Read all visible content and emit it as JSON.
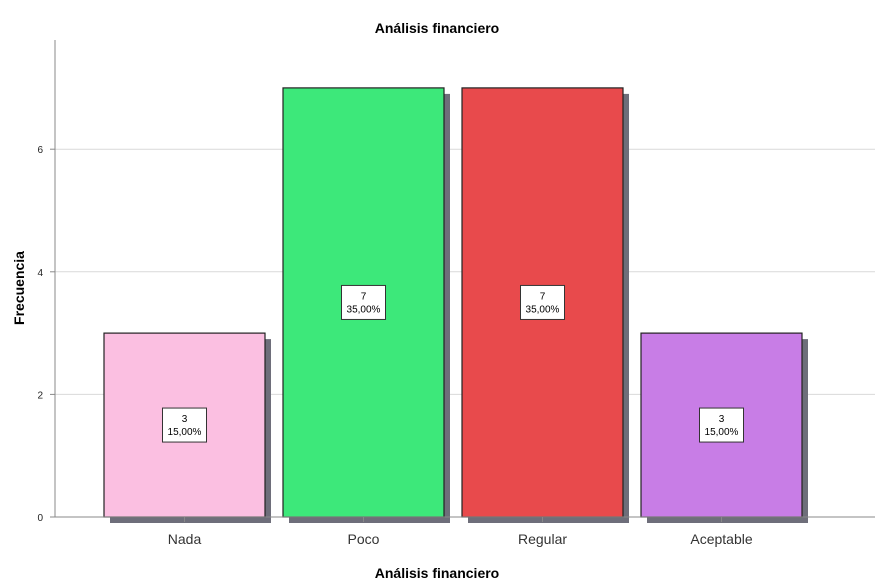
{
  "chart_data": {
    "type": "bar",
    "title": "Análisis financiero",
    "xlabel": "Análisis financiero",
    "ylabel": "Frecuencia",
    "categories": [
      "Nada",
      "Poco",
      "Regular",
      "Aceptable"
    ],
    "values": [
      3,
      7,
      7,
      3
    ],
    "data_labels": [
      {
        "count": "3",
        "percent": "15,00%"
      },
      {
        "count": "7",
        "percent": "35,00%"
      },
      {
        "count": "7",
        "percent": "35,00%"
      },
      {
        "count": "3",
        "percent": "15,00%"
      }
    ],
    "bar_colors": [
      "#fbbfe1",
      "#3de87a",
      "#e84a4c",
      "#c87de6"
    ],
    "yticks": [
      0,
      2,
      4,
      6
    ],
    "ylim": [
      0,
      7.6
    ],
    "grid": true
  }
}
